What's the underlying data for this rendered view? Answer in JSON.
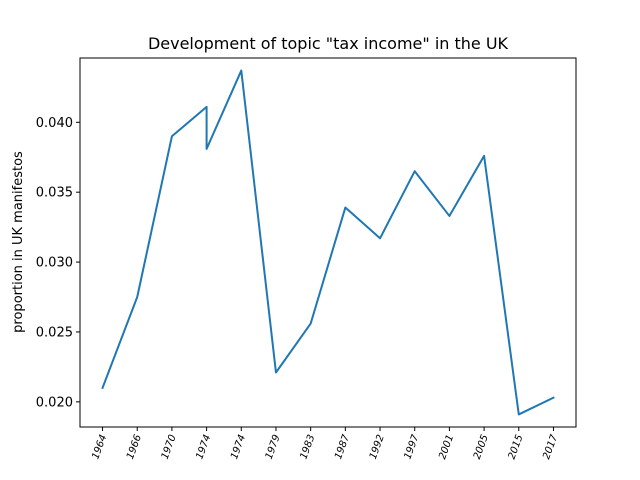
{
  "chart_data": {
    "type": "line",
    "title": "Development of topic \"tax income\" in the UK",
    "xlabel": "",
    "ylabel": "proportion in UK manifestos",
    "categories": [
      "1964",
      "1966",
      "1970",
      "1974",
      "1974",
      "1974",
      "1979",
      "1983",
      "1987",
      "1992",
      "1997",
      "2001",
      "2005",
      "2015",
      "2017"
    ],
    "x_positions": [
      0,
      1,
      2,
      3,
      3,
      4,
      5,
      6,
      7,
      8,
      9,
      10,
      11,
      12,
      13
    ],
    "tick_labels": [
      "1964",
      "1966",
      "1970",
      "1974",
      "1974",
      "1979",
      "1983",
      "1987",
      "1992",
      "1997",
      "2001",
      "2005",
      "2015",
      "2017"
    ],
    "tick_label_rotation_deg": 70,
    "series": [
      {
        "values": [
          0.021,
          0.0275,
          0.039,
          0.0411,
          0.0381,
          0.0437,
          0.0221,
          0.0256,
          0.0339,
          0.0317,
          0.0365,
          0.0333,
          0.0376,
          0.0191,
          0.0203
        ],
        "color": "#1f77b4"
      }
    ],
    "ylim": [
      0.0182,
      0.0446
    ],
    "yticks": [
      0.02,
      0.025,
      0.03,
      0.035,
      0.04
    ],
    "ytick_labels": [
      "0.020",
      "0.025",
      "0.030",
      "0.035",
      "0.040"
    ],
    "xlim": [
      -0.65,
      13.65
    ],
    "grid": false,
    "legend": "none"
  }
}
